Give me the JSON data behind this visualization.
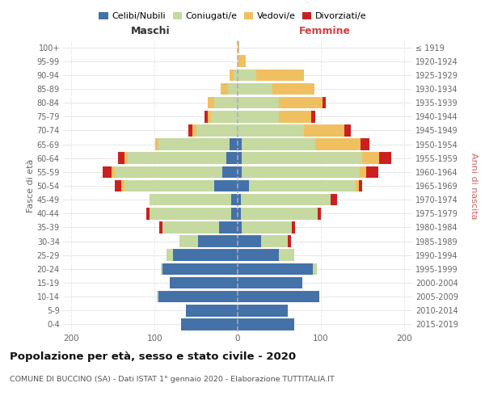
{
  "age_groups": [
    "0-4",
    "5-9",
    "10-14",
    "15-19",
    "20-24",
    "25-29",
    "30-34",
    "35-39",
    "40-44",
    "45-49",
    "50-54",
    "55-59",
    "60-64",
    "65-69",
    "70-74",
    "75-79",
    "80-84",
    "85-89",
    "90-94",
    "95-99",
    "100+"
  ],
  "birth_years": [
    "2015-2019",
    "2010-2014",
    "2005-2009",
    "2000-2004",
    "1995-1999",
    "1990-1994",
    "1985-1989",
    "1980-1984",
    "1975-1979",
    "1970-1974",
    "1965-1969",
    "1960-1964",
    "1955-1959",
    "1950-1954",
    "1945-1949",
    "1940-1944",
    "1935-1939",
    "1930-1934",
    "1925-1929",
    "1920-1924",
    "≤ 1919"
  ],
  "maschi": {
    "celibi": [
      68,
      62,
      95,
      82,
      90,
      78,
      48,
      22,
      8,
      8,
      28,
      18,
      14,
      10,
      0,
      0,
      0,
      0,
      0,
      0,
      0
    ],
    "coniugati": [
      0,
      0,
      2,
      0,
      2,
      8,
      22,
      68,
      98,
      98,
      108,
      130,
      118,
      85,
      50,
      32,
      28,
      12,
      5,
      0,
      0
    ],
    "vedovi": [
      0,
      0,
      0,
      0,
      0,
      0,
      0,
      0,
      0,
      0,
      4,
      4,
      4,
      4,
      4,
      4,
      8,
      8,
      5,
      0,
      0
    ],
    "divorziati": [
      0,
      0,
      0,
      0,
      0,
      0,
      0,
      4,
      4,
      0,
      8,
      10,
      8,
      0,
      5,
      4,
      0,
      0,
      0,
      0,
      0
    ]
  },
  "femmine": {
    "nubili": [
      68,
      60,
      98,
      78,
      90,
      50,
      28,
      5,
      4,
      4,
      14,
      5,
      5,
      5,
      0,
      0,
      0,
      0,
      0,
      0,
      0
    ],
    "coniugate": [
      0,
      0,
      0,
      0,
      5,
      18,
      32,
      60,
      92,
      108,
      128,
      142,
      145,
      88,
      80,
      50,
      50,
      42,
      22,
      0,
      0
    ],
    "vedove": [
      0,
      0,
      0,
      0,
      0,
      0,
      0,
      0,
      0,
      0,
      4,
      8,
      20,
      55,
      48,
      38,
      52,
      50,
      58,
      10,
      2
    ],
    "divorziate": [
      0,
      0,
      0,
      0,
      0,
      0,
      4,
      4,
      4,
      8,
      4,
      14,
      15,
      10,
      8,
      5,
      4,
      0,
      0,
      0,
      0
    ]
  },
  "colors": {
    "celibi_nubili": "#4472a8",
    "coniugati": "#c5d9a0",
    "vedovi": "#f0c060",
    "divorziati": "#cc2020"
  },
  "title": "Popolazione per età, sesso e stato civile - 2020",
  "subtitle": "COMUNE DI BUCCINO (SA) - Dati ISTAT 1° gennaio 2020 - Elaborazione TUTTITALIA.IT",
  "xlabel_left": "Maschi",
  "xlabel_right": "Femmine",
  "ylabel_left": "Fasce di età",
  "ylabel_right": "Anni di nascita",
  "xlim": 210,
  "background_color": "#ffffff",
  "grid_color": "#cccccc"
}
